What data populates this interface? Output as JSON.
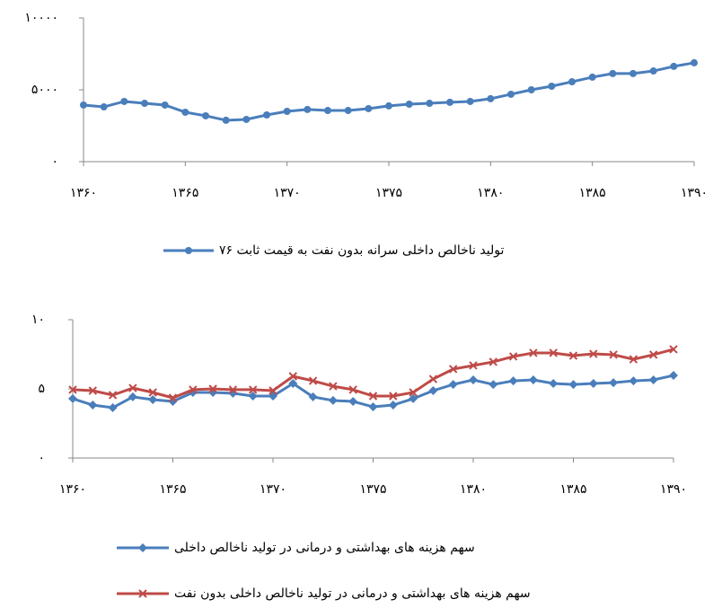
{
  "chart_data": [
    {
      "type": "line",
      "x": [
        1360,
        1361,
        1362,
        1363,
        1364,
        1365,
        1366,
        1367,
        1368,
        1369,
        1370,
        1371,
        1372,
        1373,
        1374,
        1375,
        1376,
        1377,
        1378,
        1379,
        1380,
        1381,
        1382,
        1383,
        1384,
        1385,
        1386,
        1387,
        1388,
        1389,
        1390
      ],
      "xlim": [
        1360,
        1390
      ],
      "xticks": [
        {
          "value": 1360,
          "label": "۱۳۶۰"
        },
        {
          "value": 1365,
          "label": "۱۳۶۵"
        },
        {
          "value": 1370,
          "label": "۱۳۷۰"
        },
        {
          "value": 1375,
          "label": "۱۳۷۵"
        },
        {
          "value": 1380,
          "label": "۱۳۸۰"
        },
        {
          "value": 1385,
          "label": "۱۳۸۵"
        },
        {
          "value": 1390,
          "label": "۱۳۹۰"
        }
      ],
      "ylim": [
        0,
        10000
      ],
      "yticks": [
        {
          "value": 0,
          "label": "۰"
        },
        {
          "value": 5000,
          "label": "۵۰۰۰"
        },
        {
          "value": 10000,
          "label": "۱۰۰۰۰"
        }
      ],
      "grid": false,
      "legend": "bottom",
      "series": [
        {
          "name": "تولید ناخالص داخلی سرانه بدون نفت به قیمت ثابت ۷۶",
          "color": "#4a7ebb",
          "marker": "circle",
          "values": [
            3940,
            3810,
            4190,
            4060,
            3940,
            3440,
            3190,
            2880,
            2940,
            3250,
            3500,
            3630,
            3560,
            3560,
            3690,
            3880,
            4000,
            4060,
            4130,
            4190,
            4380,
            4690,
            5000,
            5250,
            5560,
            5880,
            6130,
            6130,
            6310,
            6630,
            6880
          ]
        }
      ]
    },
    {
      "type": "line",
      "x": [
        1360,
        1361,
        1362,
        1363,
        1364,
        1365,
        1366,
        1367,
        1368,
        1369,
        1370,
        1371,
        1372,
        1373,
        1374,
        1375,
        1376,
        1377,
        1378,
        1379,
        1380,
        1381,
        1382,
        1383,
        1384,
        1385,
        1386,
        1387,
        1388,
        1389,
        1390
      ],
      "xlim": [
        1360,
        1390
      ],
      "xticks": [
        {
          "value": 1360,
          "label": "۱۳۶۰"
        },
        {
          "value": 1365,
          "label": "۱۳۶۵"
        },
        {
          "value": 1370,
          "label": "۱۳۷۰"
        },
        {
          "value": 1375,
          "label": "۱۳۷۵"
        },
        {
          "value": 1380,
          "label": "۱۳۸۰"
        },
        {
          "value": 1385,
          "label": "۱۳۸۵"
        },
        {
          "value": 1390,
          "label": "۱۳۹۰"
        }
      ],
      "ylim": [
        0,
        10
      ],
      "yticks": [
        {
          "value": 0,
          "label": "۰"
        },
        {
          "value": 5,
          "label": "۵"
        },
        {
          "value": 10,
          "label": "۱۰"
        }
      ],
      "grid": false,
      "legend": "bottom",
      "series": [
        {
          "name": "سهم هزینه های بهداشتی و درمانی در تولید ناخالص داخلی",
          "color": "#4a7ebb",
          "marker": "diamond",
          "values": [
            4.29,
            3.83,
            3.64,
            4.42,
            4.22,
            4.09,
            4.74,
            4.74,
            4.68,
            4.48,
            4.48,
            5.39,
            4.42,
            4.16,
            4.09,
            3.7,
            3.83,
            4.29,
            4.87,
            5.32,
            5.65,
            5.32,
            5.58,
            5.65,
            5.39,
            5.32,
            5.39,
            5.45,
            5.58,
            5.65,
            5.97
          ]
        },
        {
          "name": "سهم هزینه های بهداشتی و درمانی در تولید ناخالص داخلی بدون نفت",
          "color": "#be4b48",
          "marker": "x",
          "values": [
            4.94,
            4.87,
            4.55,
            5.06,
            4.74,
            4.35,
            4.94,
            5.0,
            4.94,
            4.94,
            4.87,
            5.91,
            5.58,
            5.19,
            4.94,
            4.48,
            4.48,
            4.74,
            5.71,
            6.43,
            6.69,
            6.95,
            7.34,
            7.6,
            7.6,
            7.4,
            7.53,
            7.47,
            7.14,
            7.47,
            7.86
          ]
        }
      ]
    }
  ]
}
